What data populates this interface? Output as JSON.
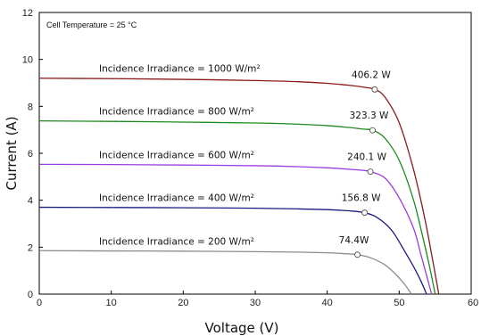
{
  "chart_data": {
    "type": "line",
    "title": "",
    "xlabel": "Voltage (V)",
    "ylabel": "Current (A)",
    "xlim": [
      0,
      60
    ],
    "ylim": [
      0,
      12
    ],
    "xticks": [
      "0",
      "10",
      "20",
      "30",
      "40",
      "50",
      "60"
    ],
    "yticks": [
      "0",
      "2",
      "4",
      "6",
      "8",
      "10",
      "12"
    ],
    "grid": false,
    "annotation": "Cell Temperature = 25 °C",
    "series": [
      {
        "name": "Incidence Irradiance = 1000 W/m²",
        "color": "#8b1a1a",
        "isc": 9.2,
        "voc": 55.5,
        "mpp": {
          "v": 46.6,
          "i": 8.72,
          "label": "406.2 W"
        },
        "x": [
          0,
          10,
          20,
          30,
          36,
          40,
          43,
          45,
          46.6,
          48,
          50,
          52,
          53.5,
          54.5,
          55.5
        ],
        "y": [
          9.2,
          9.18,
          9.15,
          9.1,
          9.05,
          8.98,
          8.9,
          8.82,
          8.72,
          8.4,
          7.3,
          5.3,
          3.3,
          1.7,
          0
        ]
      },
      {
        "name": "Incidence Irradiance = 800 W/m²",
        "color": "#1e8a1e",
        "isc": 7.38,
        "voc": 55.0,
        "mpp": {
          "v": 46.3,
          "i": 6.98,
          "label": "323.3 W"
        },
        "x": [
          0,
          10,
          20,
          30,
          36,
          40,
          43,
          45,
          46.3,
          48,
          50,
          52,
          53.3,
          54.2,
          55.0
        ],
        "y": [
          7.38,
          7.36,
          7.33,
          7.29,
          7.24,
          7.18,
          7.1,
          7.03,
          6.98,
          6.65,
          5.7,
          4.0,
          2.4,
          1.2,
          0
        ]
      },
      {
        "name": "Incidence Irradiance = 600 W/m²",
        "color": "#9a3de0",
        "isc": 5.53,
        "voc": 54.5,
        "mpp": {
          "v": 46.0,
          "i": 5.22,
          "label": "240.1 W"
        },
        "x": [
          0,
          10,
          20,
          30,
          36,
          40,
          43,
          45,
          46.0,
          48,
          50,
          52,
          53.0,
          53.8,
          54.5
        ],
        "y": [
          5.53,
          5.52,
          5.5,
          5.47,
          5.43,
          5.38,
          5.32,
          5.27,
          5.22,
          4.95,
          4.1,
          2.8,
          1.7,
          0.8,
          0
        ]
      },
      {
        "name": "Incidence Irradiance = 400 W/m²",
        "color": "#1a1a80",
        "isc": 3.7,
        "voc": 53.8,
        "mpp": {
          "v": 45.2,
          "i": 3.47,
          "label": "156.8 W"
        },
        "x": [
          0,
          10,
          20,
          30,
          36,
          40,
          43,
          45.2,
          47,
          49,
          51,
          52.3,
          53.1,
          53.8
        ],
        "y": [
          3.7,
          3.69,
          3.68,
          3.66,
          3.63,
          3.6,
          3.55,
          3.47,
          3.25,
          2.7,
          1.7,
          1.0,
          0.5,
          0
        ]
      },
      {
        "name": "Incidence Irradiance = 200 W/m²",
        "color": "#8c8c8c",
        "isc": 1.85,
        "voc": 51.7,
        "mpp": {
          "v": 44.2,
          "i": 1.68,
          "label": "74.4W"
        },
        "x": [
          0,
          10,
          20,
          30,
          36,
          40,
          42,
          44.2,
          46,
          48,
          49.5,
          50.8,
          51.7
        ],
        "y": [
          1.85,
          1.84,
          1.83,
          1.81,
          1.79,
          1.76,
          1.73,
          1.68,
          1.55,
          1.25,
          0.85,
          0.4,
          0
        ]
      }
    ]
  }
}
